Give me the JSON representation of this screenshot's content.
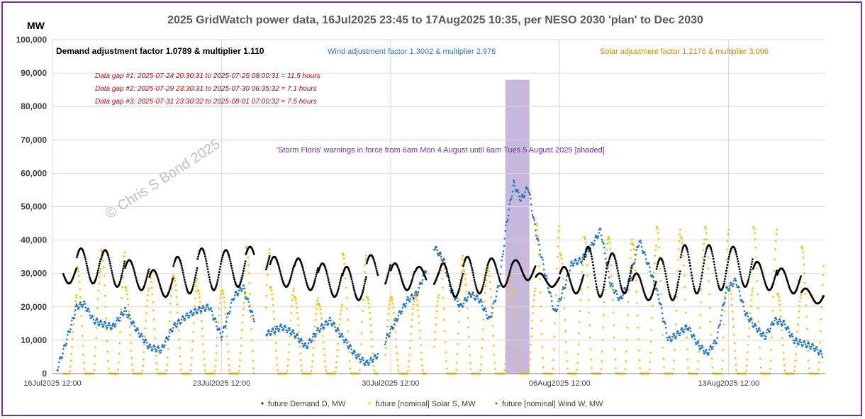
{
  "chart_data": {
    "type": "scatter",
    "title": "2025 GridWatch power data, 16Jul2025 23:45 to 17Aug2025 10:35,  per NESO 2030 'plan' to Dec 2030",
    "ylabel": "MW",
    "ylim": [
      0,
      100000
    ],
    "yticks": [
      "0",
      "10,000",
      "20,000",
      "30,000",
      "40,000",
      "50,000",
      "60,000",
      "70,000",
      "80,000",
      "90,000",
      "100,000"
    ],
    "xrange_days": [
      16.5,
      48.5
    ],
    "xticks": [
      {
        "day": 16.5,
        "label": "16Jul2025 12:00"
      },
      {
        "day": 23.5,
        "label": "23Jul2025 12:00"
      },
      {
        "day": 30.5,
        "label": "30Jul2025 12:00"
      },
      {
        "day": 37.5,
        "label": "06Aug2025 12:00"
      },
      {
        "day": 44.5,
        "label": "13Aug2025 12:00"
      }
    ],
    "annotations": {
      "demand_factor": "Demand adjustment factor 1.0789 & multiplier 1.110",
      "wind_factor": "Wind adjustment factor 1.3002 & multiplier 2.976",
      "solar_factor": "Solar adjustment factor 1.2176 & multiplier 3.096",
      "gap1": "Data gap #1:  2025-07-24 20:30:31 to  2025-07-25 08:00:31 = 11.5 hours",
      "gap2": "Data gap #2:  2025-07-29 23:30:31 to  2025-07-30 06:35:32 = 7.1 hours",
      "gap3": "Data gap #3:  2025-07-31 23:30:32 to  2025-08-01 07:00:32 = 7.5 hours",
      "storm": "'Storm Floris' warnings in force from 6am Mon 4 August until 6am Tues 5 August 2025 [shaded]",
      "watermark": "© Chris S Bond  2025"
    },
    "shaded_region": {
      "from_day": 35.25,
      "to_day": 36.25,
      "ymax": 88000,
      "color": "#b4a0d2"
    },
    "data_gaps_days": [
      [
        24.854,
        25.334
      ],
      [
        29.979,
        30.274
      ],
      [
        31.979,
        32.292
      ]
    ],
    "series": [
      {
        "name": "future Demand D, MW",
        "color": "#000000",
        "daily_x": [
          17,
          18,
          19,
          20,
          21,
          22,
          23,
          24,
          25,
          26,
          27,
          28,
          29,
          30,
          31,
          32,
          33,
          34,
          35,
          36,
          37,
          38,
          39,
          40,
          41,
          42,
          43,
          44,
          45,
          46,
          47,
          48
        ],
        "daily_peak": [
          33500,
          37500,
          37000,
          34000,
          31000,
          35000,
          37500,
          37000,
          38000,
          35000,
          34500,
          33000,
          32000,
          35500,
          33000,
          32000,
          33000,
          35000,
          34500,
          34000,
          30000,
          32000,
          38000,
          36000,
          30000,
          34500,
          38500,
          38500,
          38000,
          33500,
          31500,
          25500
        ],
        "daily_trough": [
          27000,
          27000,
          26000,
          25000,
          23000,
          24000,
          25000,
          26000,
          29000,
          26000,
          25000,
          23000,
          22000,
          26000,
          25000,
          26000,
          23000,
          24000,
          26000,
          28000,
          26000,
          24000,
          23000,
          24000,
          22000,
          22000,
          24000,
          25000,
          26000,
          25000,
          24000,
          21000
        ]
      },
      {
        "name": "future [nominal]  Solar S, MW",
        "color": "#ffc000",
        "daily_x": [
          17,
          18,
          19,
          20,
          21,
          22,
          23,
          24,
          25,
          26,
          27,
          28,
          29,
          30,
          31,
          32,
          33,
          34,
          35,
          36,
          37,
          38,
          39,
          40,
          41,
          42,
          43,
          44,
          45,
          46,
          47,
          48
        ],
        "daily_peak": [
          24000,
          32000,
          37000,
          26000,
          30000,
          29000,
          25000,
          25000,
          38000,
          26000,
          23000,
          21000,
          36000,
          23000,
          23000,
          24000,
          36000,
          31000,
          32000,
          26000,
          45000,
          36000,
          41000,
          41000,
          39000,
          44000,
          41000,
          44000,
          26000,
          44000,
          24000,
          38000
        ]
      },
      {
        "name": "future [nominal]  Wind W, MW",
        "color": "#1f78c1",
        "x": [
          16.7,
          17.0,
          17.5,
          17.8,
          18.2,
          18.5,
          19.0,
          19.5,
          20.0,
          20.5,
          21.0,
          21.5,
          22.0,
          22.5,
          23.0,
          23.5,
          24.0,
          24.4,
          24.8,
          25.4,
          26.0,
          26.5,
          27.0,
          27.5,
          28.0,
          28.5,
          29.0,
          29.5,
          29.9,
          30.3,
          30.8,
          31.2,
          31.6,
          32.0,
          32.3,
          32.7,
          33.0,
          33.4,
          33.8,
          34.2,
          34.6,
          35.0,
          35.3,
          35.6,
          35.9,
          36.2,
          36.5,
          36.9,
          37.3,
          37.7,
          38.0,
          38.4,
          38.8,
          39.2,
          39.6,
          40.0,
          40.4,
          40.8,
          41.2,
          41.6,
          42.0,
          42.4,
          42.8,
          43.2,
          43.6,
          44.0,
          44.4,
          44.8,
          45.2,
          45.6,
          46.0,
          46.4,
          46.8,
          47.2,
          47.6,
          48.0,
          48.4
        ],
        "y": [
          1500,
          8000,
          20000,
          21000,
          16000,
          15000,
          14000,
          19000,
          13000,
          8000,
          7000,
          14000,
          17000,
          19000,
          20000,
          11000,
          23000,
          26000,
          17000,
          12000,
          14000,
          12000,
          8000,
          13000,
          16000,
          11000,
          6000,
          3000,
          5000,
          10000,
          17000,
          22000,
          24000,
          32000,
          38000,
          34000,
          25000,
          20000,
          24000,
          22000,
          16000,
          27000,
          45000,
          57000,
          52000,
          56000,
          43000,
          30000,
          18000,
          26000,
          33000,
          34000,
          38000,
          43000,
          27000,
          22000,
          28000,
          40000,
          32000,
          23000,
          10000,
          12000,
          14000,
          9000,
          6000,
          10000,
          25000,
          28000,
          18000,
          14000,
          11000,
          16000,
          15000,
          10000,
          9000,
          8000,
          5500
        ]
      }
    ]
  }
}
